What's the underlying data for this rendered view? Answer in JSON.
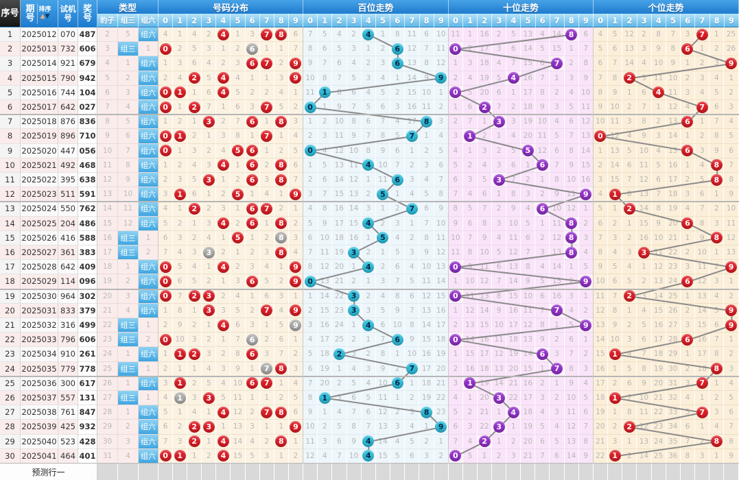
{
  "header": {
    "seq": "序号",
    "period": "期号",
    "sort": "排序",
    "sort_up_icon": "▲",
    "sort_down_icon": "▼",
    "test": "试机号",
    "prize": "奖号",
    "type_title": "类型",
    "type_cols": [
      "豹子",
      "组三",
      "组六"
    ],
    "section_titles": [
      "号码分布",
      "百位走势",
      "十位走势",
      "个位走势"
    ],
    "digits": [
      "0",
      "1",
      "2",
      "3",
      "4",
      "5",
      "6",
      "7",
      "8",
      "9"
    ]
  },
  "footer": {
    "label": "预测行一"
  },
  "colors": {
    "header_blue_top": "#47a2e6",
    "header_blue_bottom": "#1e7ccf",
    "subheader_blue_top": "#b7e3f8",
    "subheader_blue_bottom": "#60b8e9",
    "seq_header_dark": "#2b2b2b",
    "circle_red": "#dc1e26",
    "circle_gray": "#ababab",
    "circle_cyan": "#2fbcd9",
    "circle_purple": "#9231c8",
    "line_gray": "#8a8a8a",
    "bg_dist": "#fcf2e2",
    "bg_hundreds": "#edf6fb",
    "bg_tens": "#fae4f9",
    "bg_units": "#fcefd9",
    "row_stripe_pink": "#fbecec",
    "row_stripe_gray": "#f4f4f4"
  },
  "chart_data": {
    "type": "table",
    "description": "3D lottery trend chart: 30 draws; circled cells are the drawn digits (号码分布 = all prize digits, red = single, gray = doubled pair; 百位/十位/个位 = positional digit). All other cells show running miss counts that increment by 1 per row and reset after a hit.",
    "rows": [
      {
        "seq": 1,
        "period": "2025012",
        "test": "070",
        "prize": "487"
      },
      {
        "seq": 2,
        "period": "2025013",
        "test": "732",
        "prize": "606"
      },
      {
        "seq": 3,
        "period": "2025014",
        "test": "921",
        "prize": "679"
      },
      {
        "seq": 4,
        "period": "2025015",
        "test": "790",
        "prize": "942"
      },
      {
        "seq": 5,
        "period": "2025016",
        "test": "744",
        "prize": "104"
      },
      {
        "seq": 6,
        "period": "2025017",
        "test": "642",
        "prize": "027"
      },
      {
        "seq": 7,
        "period": "2025018",
        "test": "876",
        "prize": "836"
      },
      {
        "seq": 8,
        "period": "2025019",
        "test": "896",
        "prize": "710"
      },
      {
        "seq": 9,
        "period": "2025020",
        "test": "447",
        "prize": "056"
      },
      {
        "seq": 10,
        "period": "2025021",
        "test": "492",
        "prize": "468"
      },
      {
        "seq": 11,
        "period": "2025022",
        "test": "395",
        "prize": "638"
      },
      {
        "seq": 12,
        "period": "2025023",
        "test": "511",
        "prize": "591"
      },
      {
        "seq": 13,
        "period": "2025024",
        "test": "550",
        "prize": "762"
      },
      {
        "seq": 14,
        "period": "2025025",
        "test": "204",
        "prize": "486"
      },
      {
        "seq": 15,
        "period": "2025026",
        "test": "416",
        "prize": "588"
      },
      {
        "seq": 16,
        "period": "2025027",
        "test": "361",
        "prize": "383"
      },
      {
        "seq": 17,
        "period": "2025028",
        "test": "642",
        "prize": "409"
      },
      {
        "seq": 18,
        "period": "2025029",
        "test": "114",
        "prize": "096"
      },
      {
        "seq": 19,
        "period": "2025030",
        "test": "964",
        "prize": "302"
      },
      {
        "seq": 20,
        "period": "2025031",
        "test": "833",
        "prize": "379"
      },
      {
        "seq": 21,
        "period": "2025032",
        "test": "316",
        "prize": "499"
      },
      {
        "seq": 22,
        "period": "2025033",
        "test": "796",
        "prize": "606"
      },
      {
        "seq": 23,
        "period": "2025034",
        "test": "910",
        "prize": "261"
      },
      {
        "seq": 24,
        "period": "2025035",
        "test": "779",
        "prize": "778"
      },
      {
        "seq": 25,
        "period": "2025036",
        "test": "300",
        "prize": "617"
      },
      {
        "seq": 26,
        "period": "2025037",
        "test": "557",
        "prize": "131"
      },
      {
        "seq": 27,
        "period": "2025038",
        "test": "761",
        "prize": "847"
      },
      {
        "seq": 28,
        "period": "2025039",
        "test": "425",
        "prize": "932"
      },
      {
        "seq": 29,
        "period": "2025040",
        "test": "523",
        "prize": "428"
      },
      {
        "seq": 30,
        "period": "2025041",
        "test": "464",
        "prize": "401"
      }
    ],
    "row1_displayed": {
      "leopard_miss": 2,
      "group3_miss": 5,
      "group6": "hit",
      "dist": [
        4,
        1,
        4,
        2,
        "H",
        1,
        3,
        "H",
        "H",
        6
      ],
      "hundreds": [
        7,
        5,
        4,
        2,
        "H",
        1,
        8,
        11,
        6,
        10
      ],
      "tens": [
        11,
        1,
        16,
        2,
        5,
        13,
        4,
        14,
        "H",
        6
      ],
      "units": [
        4,
        5,
        12,
        2,
        8,
        7,
        3,
        "H",
        1,
        25
      ]
    }
  }
}
